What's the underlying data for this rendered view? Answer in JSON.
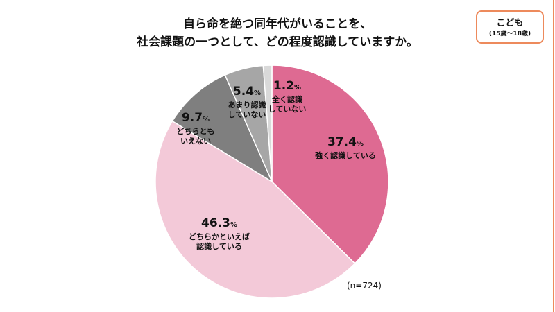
{
  "title_lines": [
    "自ら命を絶つ同年代がいることを、",
    "社会課題の一つとして、どの程度認識していますか。"
  ],
  "badge": {
    "label": "こども",
    "sub": "(15歳〜18歳)"
  },
  "note": "(n=724)",
  "chart_data": {
    "type": "pie",
    "start": "top",
    "direction": "clockwise",
    "slices": [
      {
        "label": "強く認識している",
        "value": 37.4,
        "display": "37.4",
        "color": "#de6a92"
      },
      {
        "label": "どちらかといえば認識している",
        "value": 46.3,
        "display": "46.3",
        "color": "#f3c9d8"
      },
      {
        "label": "どちらともいえない",
        "value": 9.7,
        "display": "9.7",
        "color": "#7f7f7f"
      },
      {
        "label": "あまり認識していない",
        "value": 5.4,
        "display": "5.4",
        "color": "#a6a6a6"
      },
      {
        "label": "全く認識していない",
        "value": 1.2,
        "display": "1.2",
        "color": "#d9d9d9"
      }
    ],
    "label_lines": [
      [
        "強く認識している"
      ],
      [
        "どちらかといえば",
        "認識している"
      ],
      [
        "どちらとも",
        "いえない"
      ],
      [
        "あまり認識",
        "していない"
      ],
      [
        "全く認識",
        "していない"
      ]
    ],
    "unit": "%"
  }
}
